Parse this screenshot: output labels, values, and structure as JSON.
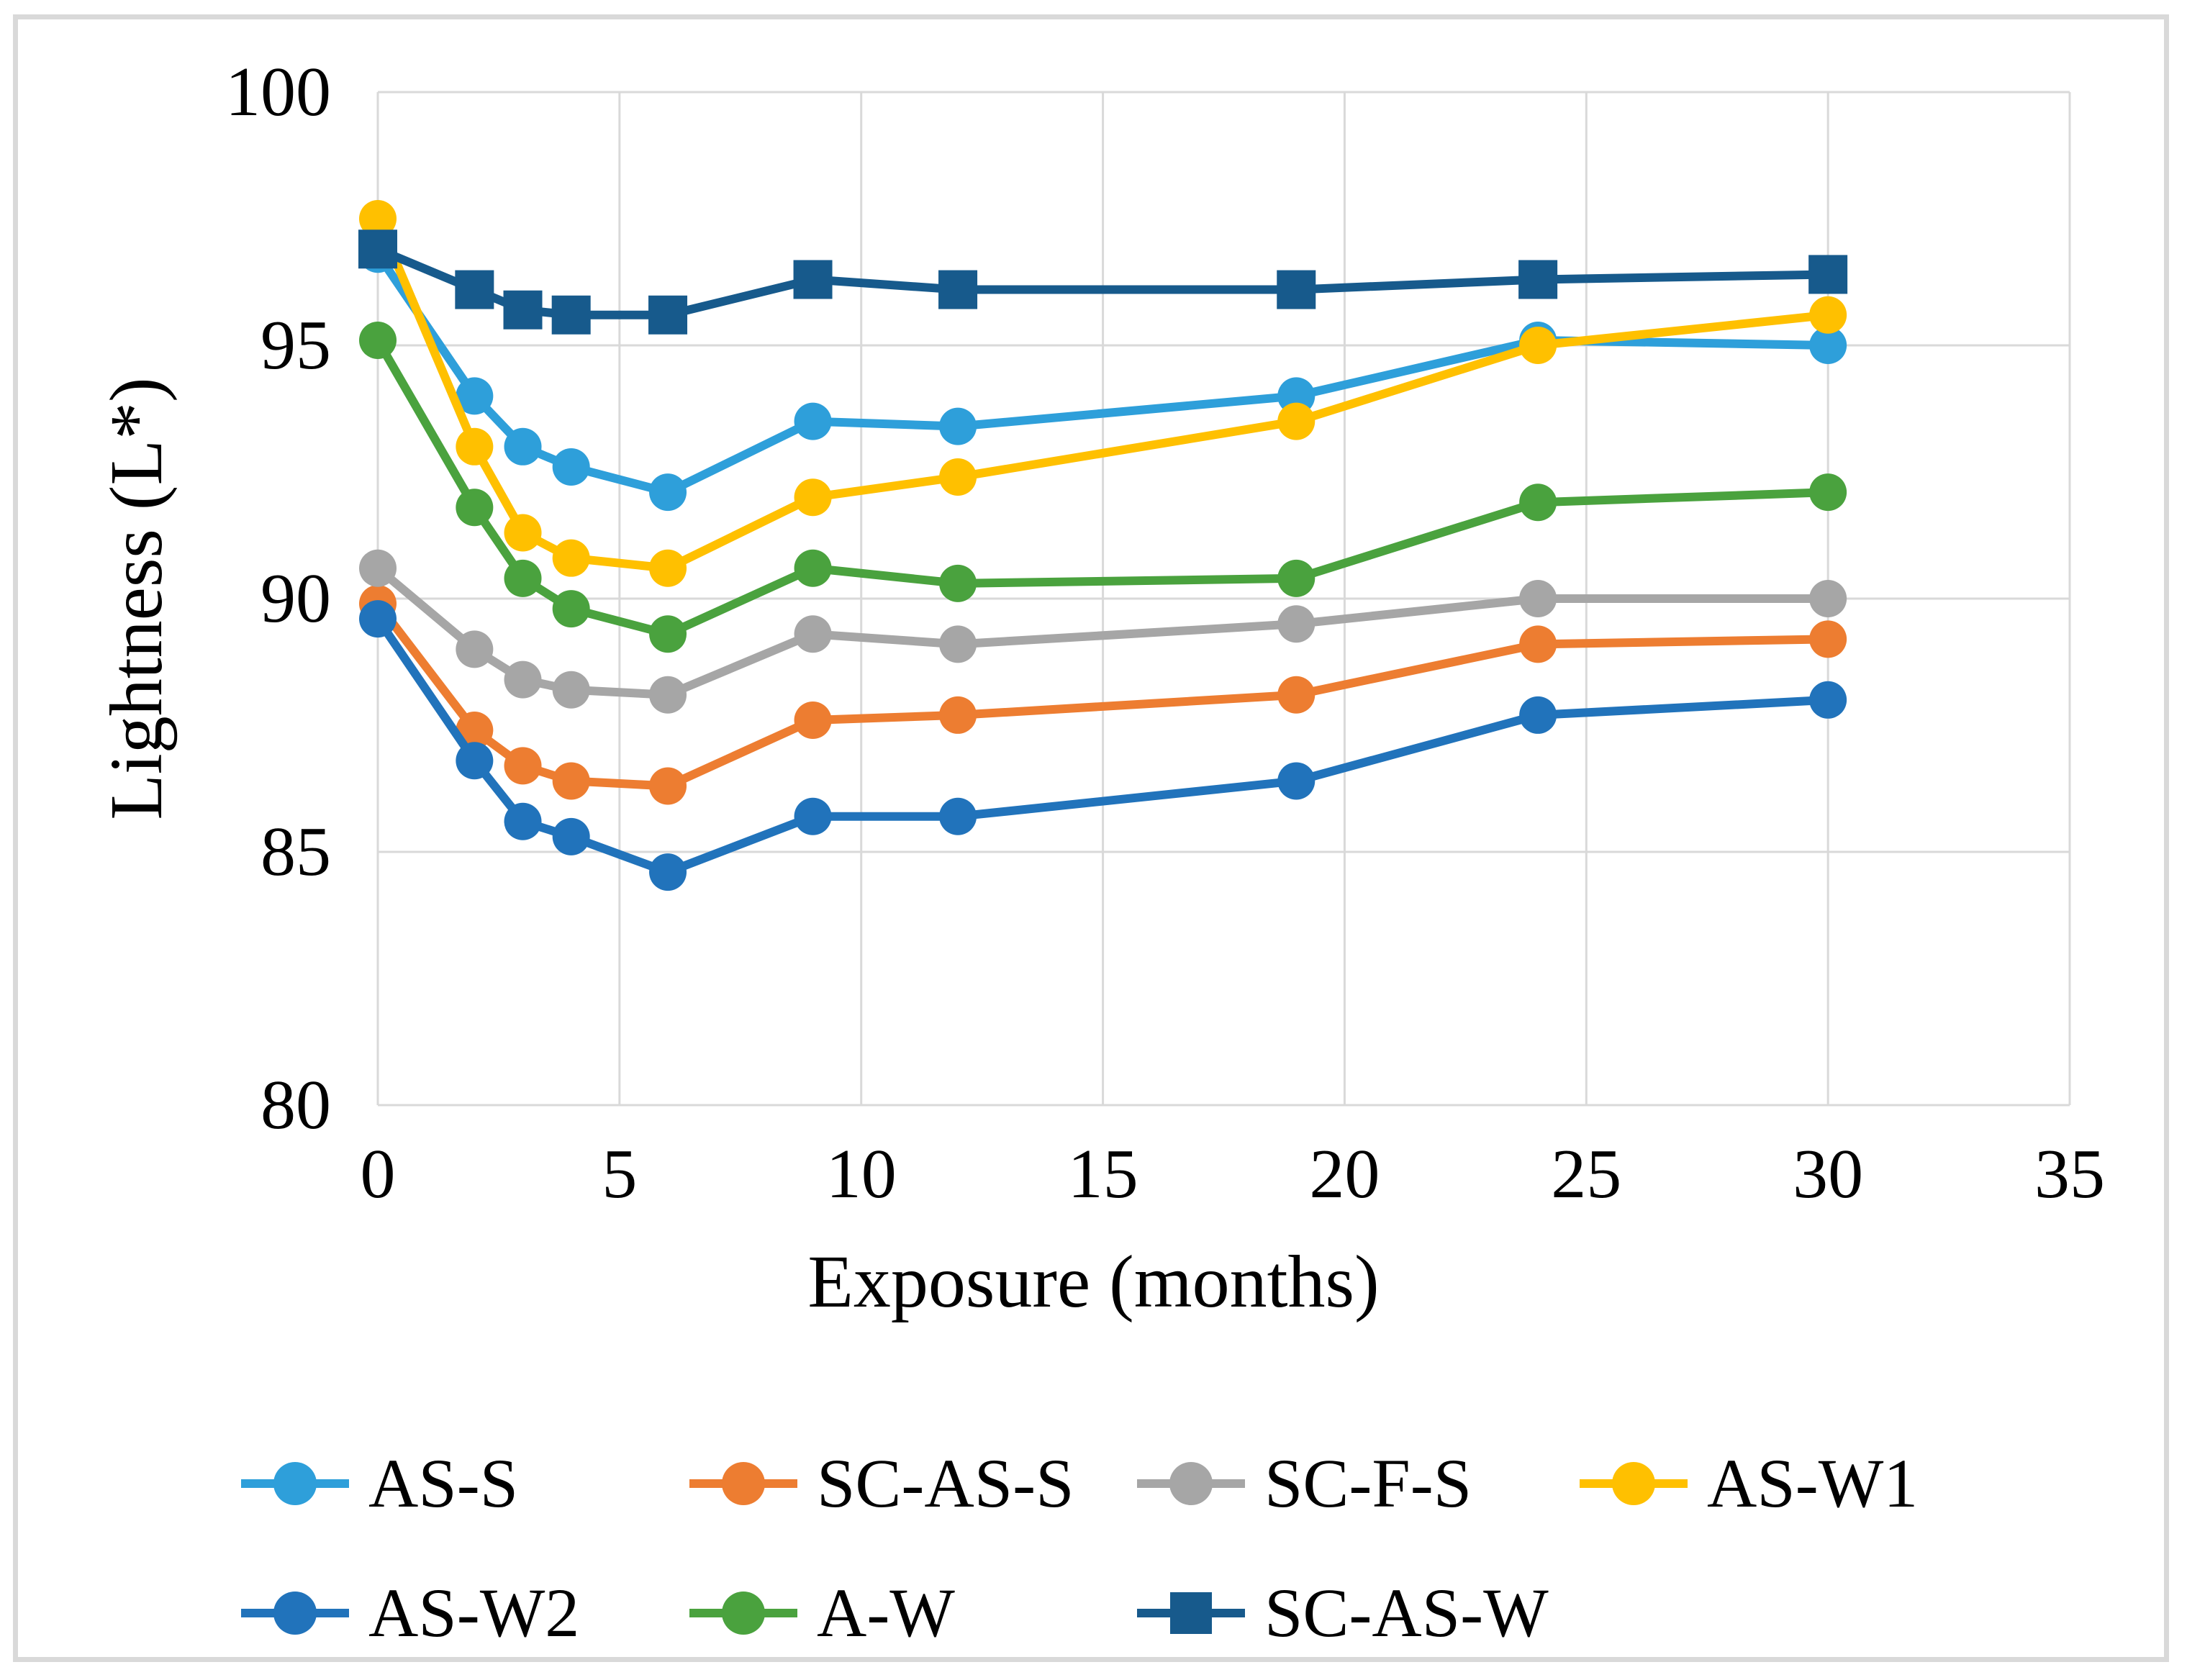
{
  "figure_title": "",
  "chart_data": {
    "type": "line",
    "title": "",
    "xlabel": "Exposure (months)",
    "ylabel": "Lightness (L*)",
    "xlim": [
      0,
      35
    ],
    "ylim": [
      80,
      100
    ],
    "x_ticks": [
      0,
      5,
      10,
      15,
      20,
      25,
      30,
      35
    ],
    "y_ticks": [
      80,
      85,
      90,
      95,
      100
    ],
    "grid": true,
    "legend_position": "bottom",
    "x": [
      0,
      2,
      3,
      4,
      6,
      9,
      12,
      19,
      24,
      30
    ],
    "series": [
      {
        "name": "AS-S",
        "color": "#2E9FDA",
        "marker": "circle",
        "values": [
          96.8,
          94.0,
          93.0,
          92.6,
          92.1,
          93.5,
          93.4,
          94.0,
          95.1,
          95.0
        ]
      },
      {
        "name": "SC-AS-S",
        "color": "#ED7D31",
        "marker": "circle",
        "values": [
          89.9,
          87.4,
          86.7,
          86.4,
          86.3,
          87.6,
          87.7,
          88.1,
          89.1,
          89.2
        ]
      },
      {
        "name": "SC-F-S",
        "color": "#A6A6A6",
        "marker": "circle",
        "values": [
          90.6,
          89.0,
          88.4,
          88.2,
          88.1,
          89.3,
          89.1,
          89.5,
          90.0,
          90.0
        ]
      },
      {
        "name": "AS-W1",
        "color": "#FFC000",
        "marker": "circle",
        "values": [
          97.5,
          93.0,
          91.3,
          90.8,
          90.6,
          92.0,
          92.4,
          93.5,
          95.0,
          95.6
        ]
      },
      {
        "name": "AS-W2",
        "color": "#2173BB",
        "marker": "circle",
        "values": [
          89.6,
          86.8,
          85.6,
          85.3,
          84.6,
          85.7,
          85.7,
          86.4,
          87.7,
          88.0
        ]
      },
      {
        "name": "A-W",
        "color": "#4AA23E",
        "marker": "circle",
        "values": [
          95.1,
          91.8,
          90.4,
          89.8,
          89.3,
          90.6,
          90.3,
          90.4,
          91.9,
          92.1
        ]
      },
      {
        "name": "SC-AS-W",
        "color": "#175A8C",
        "marker": "square",
        "values": [
          96.9,
          96.1,
          95.7,
          95.6,
          95.6,
          96.3,
          96.1,
          96.1,
          96.3,
          96.4
        ]
      }
    ]
  },
  "colors": {
    "gridline": "#D9D9D9",
    "figure_border": "#D9D9D9",
    "text": "#000000",
    "background": "#FFFFFF"
  }
}
